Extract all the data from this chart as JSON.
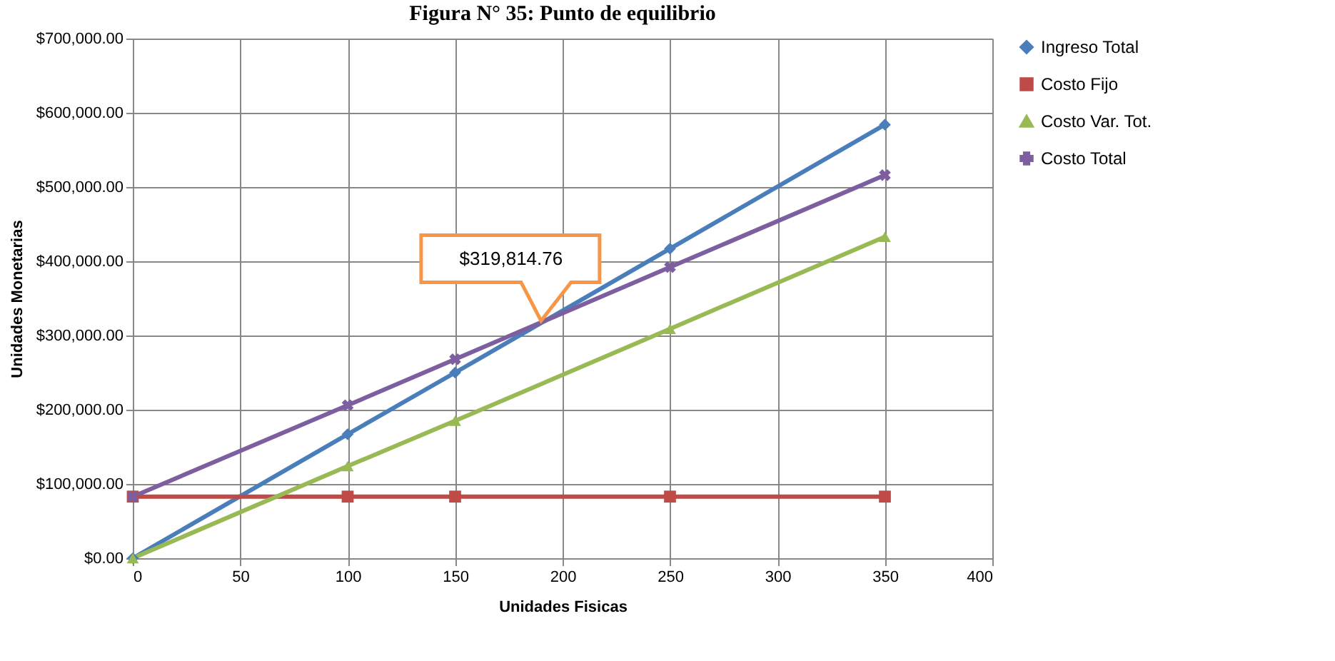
{
  "chart_data": {
    "type": "line",
    "title": "Figura N° 35: Punto de equilibrio",
    "xlabel": "Unidades Fisicas",
    "ylabel": "Unidades Monetarias",
    "x": [
      0,
      100,
      150,
      250,
      350
    ],
    "series": [
      {
        "name": "Ingreso Total",
        "color": "#4a7ebb",
        "marker": "diamond",
        "values": [
          0,
          167000,
          250000,
          417000,
          584000
        ]
      },
      {
        "name": "Costo Fijo",
        "color": "#be4b48",
        "marker": "square",
        "values": [
          83000,
          83000,
          83000,
          83000,
          83000
        ]
      },
      {
        "name": "Costo Var. Tot.",
        "color": "#98b954",
        "marker": "triangle",
        "values": [
          0,
          124000,
          185000,
          309000,
          433000
        ]
      },
      {
        "name": "Costo Total",
        "color": "#7d5fa0",
        "marker": "cross",
        "values": [
          83000,
          206000,
          268000,
          392000,
          516000
        ]
      }
    ],
    "xlim": [
      0,
      400
    ],
    "xticks": [
      0,
      50,
      100,
      150,
      200,
      250,
      300,
      350,
      400
    ],
    "ylim": [
      0,
      700000
    ],
    "yticks": [
      {
        "value": 0,
        "label": "$0.00"
      },
      {
        "value": 100000,
        "label": "$100,000.00"
      },
      {
        "value": 200000,
        "label": "$200,000.00"
      },
      {
        "value": 300000,
        "label": "$300,000.00"
      },
      {
        "value": 400000,
        "label": "$400,000.00"
      },
      {
        "value": 500000,
        "label": "$500,000.00"
      },
      {
        "value": 600000,
        "label": "$600,000.00"
      },
      {
        "value": 700000,
        "label": "$700,000.00"
      }
    ],
    "annotations": [
      {
        "text": "$319,814.76",
        "x": 190,
        "y": 319814.76
      }
    ],
    "grid": true,
    "legend": "right",
    "line_style": "solid"
  }
}
